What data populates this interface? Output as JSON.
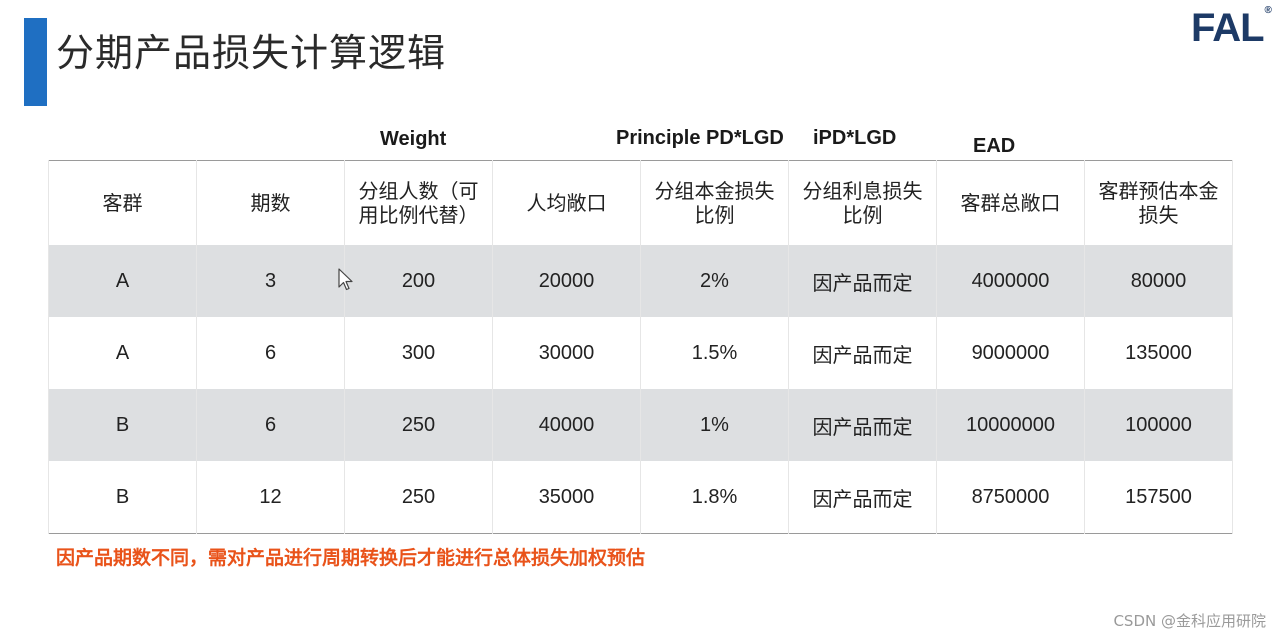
{
  "slide": {
    "title": "分期产品损失计算逻辑",
    "logo": "FAL",
    "logo_mark": "®",
    "accent_color": "#1f6fc2"
  },
  "annotations": {
    "weight": "Weight",
    "principle_pd_lgd": "Principle PD*LGD",
    "ipd_lgd": "iPD*LGD",
    "ead": "EAD"
  },
  "table": {
    "headers": [
      "客群",
      "期数",
      "分组人数（可用比例代替）",
      "人均敞口",
      "分组本金损失比例",
      "分组利息损失比例",
      "客群总敞口",
      "客群预估本金损失"
    ],
    "rows": [
      [
        "A",
        "3",
        "200",
        "20000",
        "2%",
        "因产品而定",
        "4000000",
        "80000"
      ],
      [
        "A",
        "6",
        "300",
        "30000",
        "1.5%",
        "因产品而定",
        "9000000",
        "135000"
      ],
      [
        "B",
        "6",
        "250",
        "40000",
        "1%",
        "因产品而定",
        "10000000",
        "100000"
      ],
      [
        "B",
        "12",
        "250",
        "35000",
        "1.8%",
        "因产品而定",
        "8750000",
        "157500"
      ]
    ]
  },
  "note": "因产品期数不同，需对产品进行周期转换后才能进行总体损失加权预估",
  "note_color": "#e9531a",
  "watermark": "CSDN @金科应用研院"
}
